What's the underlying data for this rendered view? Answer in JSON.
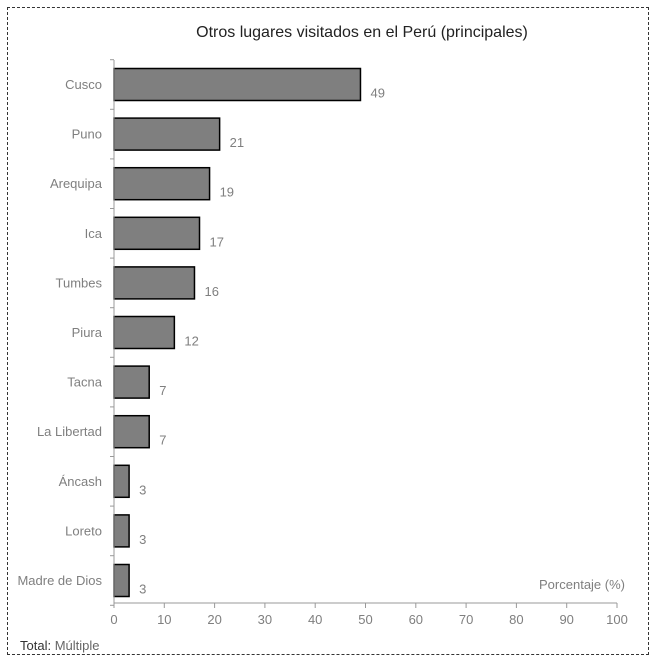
{
  "chart_data": {
    "type": "bar",
    "orientation": "horizontal",
    "title": "Otros lugares visitados en el Perú (principales)",
    "xlabel": "Porcentaje (%)",
    "ylabel": "",
    "xlim": [
      0,
      100
    ],
    "x_ticks": [
      "0",
      "10",
      "20",
      "30",
      "40",
      "50",
      "60",
      "70",
      "80",
      "90",
      "100"
    ],
    "categories": [
      "Cusco",
      "Puno",
      "Arequipa",
      "Ica",
      "Tumbes",
      "Piura",
      "Tacna",
      "La Libertad",
      "Áncash",
      "Loreto",
      "Madre de Dios"
    ],
    "values": [
      49,
      21,
      19,
      17,
      16,
      12,
      7,
      7,
      3,
      3,
      3
    ],
    "data_labels": [
      "49",
      "21",
      "19",
      "17",
      "16",
      "12",
      "7",
      "7",
      "3",
      "3",
      "3"
    ],
    "grid": false,
    "legend": "none",
    "colors": {
      "bar_fill": "#7f7f7f",
      "bar_stroke": "#000000",
      "label_text": "#7f7f7f",
      "axis": "#999999"
    }
  },
  "footer": {
    "label": "Total",
    "separator": ": ",
    "value": "Múltiple"
  }
}
